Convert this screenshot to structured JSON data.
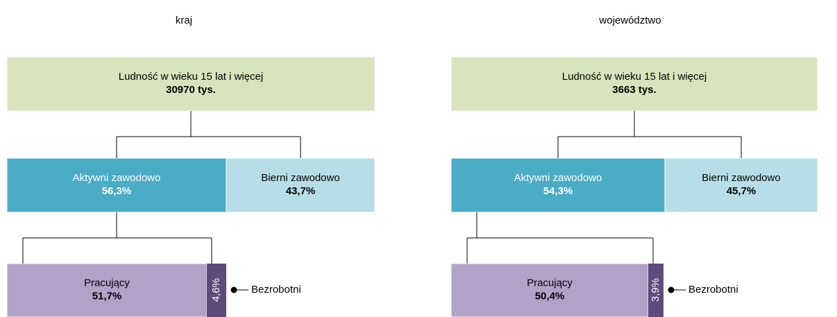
{
  "panels": [
    {
      "title": "kraj",
      "population": {
        "label": "Ludność w wieku 15 lat i więcej",
        "value": "30970 tys."
      },
      "active": {
        "label": "Aktywni zawodowo",
        "value": "56,3%"
      },
      "inactive": {
        "label": "Bierni zawodowo",
        "value": "43,7%"
      },
      "employed": {
        "label": "Pracujący",
        "value": "51,7%"
      },
      "unemployed": {
        "label": "Bezrobotni",
        "value": "4,6%"
      }
    },
    {
      "title": "województwo",
      "population": {
        "label": "Ludność w wieku 15 lat i więcej",
        "value": "3663 tys."
      },
      "active": {
        "label": "Aktywni zawodowo",
        "value": "54,3%"
      },
      "inactive": {
        "label": "Bierni zawodowo",
        "value": "45,7%"
      },
      "employed": {
        "label": "Pracujący",
        "value": "50,4%"
      },
      "unemployed": {
        "label": "Bezrobotni",
        "value": "3,9%"
      }
    }
  ]
}
